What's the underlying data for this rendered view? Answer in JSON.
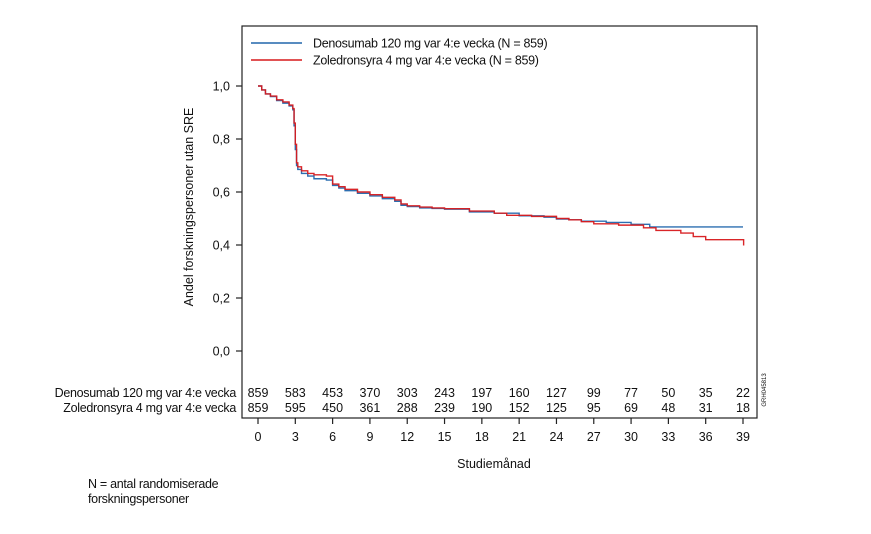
{
  "chart_data": {
    "type": "line",
    "subtype": "kaplan-meier-step",
    "title": "",
    "xlabel": "Studiemånad",
    "ylabel": "Andel forskningspersoner utan SRE",
    "xlim": [
      0,
      39
    ],
    "ylim": [
      0,
      1.0
    ],
    "x_ticks": [
      0,
      3,
      6,
      9,
      12,
      15,
      18,
      21,
      24,
      27,
      30,
      33,
      36,
      39
    ],
    "y_ticks": [
      0.0,
      0.2,
      0.4,
      0.6,
      0.8,
      1.0
    ],
    "y_tick_labels": [
      "0,0",
      "0,2",
      "0,4",
      "0,6",
      "0,8",
      "1,0"
    ],
    "grid": false,
    "legend_position": "top",
    "series": [
      {
        "name": "Denosumab 120 mg var 4:e vecka (N = 859)",
        "color": "#2166ac",
        "x": [
          0,
          0.3,
          0.6,
          1.0,
          1.5,
          2.0,
          2.5,
          2.8,
          2.9,
          3.0,
          3.1,
          3.2,
          3.5,
          4.0,
          4.5,
          5.5,
          6.0,
          6.5,
          7.0,
          8.0,
          9.0,
          10.0,
          11.0,
          11.5,
          12.0,
          13.0,
          14.0,
          15.0,
          17.0,
          19.0,
          21.0,
          23.0,
          24.0,
          25.0,
          26.0,
          28.0,
          30.0,
          31.5,
          39.0
        ],
        "y": [
          1.0,
          0.985,
          0.97,
          0.96,
          0.945,
          0.935,
          0.925,
          0.91,
          0.85,
          0.76,
          0.7,
          0.685,
          0.67,
          0.66,
          0.65,
          0.645,
          0.625,
          0.615,
          0.605,
          0.595,
          0.585,
          0.575,
          0.565,
          0.55,
          0.545,
          0.54,
          0.538,
          0.535,
          0.525,
          0.52,
          0.51,
          0.505,
          0.498,
          0.495,
          0.49,
          0.485,
          0.478,
          0.468,
          0.468
        ]
      },
      {
        "name": "Zoledronsyra 4 mg var 4:e vecka (N = 859)",
        "color": "#d7191c",
        "x": [
          0,
          0.3,
          0.6,
          1.0,
          1.5,
          2.0,
          2.5,
          2.8,
          2.9,
          3.0,
          3.1,
          3.2,
          3.5,
          4.0,
          4.5,
          5.5,
          6.0,
          6.5,
          7.0,
          8.0,
          9.0,
          10.0,
          11.0,
          11.5,
          12.0,
          13.0,
          14.0,
          15.0,
          17.0,
          19.0,
          20.0,
          22.0,
          24.0,
          25.0,
          26.0,
          27.0,
          29.0,
          31.0,
          32.0,
          34.0,
          35.0,
          36.0,
          39.0,
          39.05
        ],
        "y": [
          1.0,
          0.985,
          0.97,
          0.962,
          0.948,
          0.94,
          0.928,
          0.915,
          0.86,
          0.78,
          0.71,
          0.695,
          0.68,
          0.67,
          0.665,
          0.66,
          0.63,
          0.62,
          0.61,
          0.6,
          0.59,
          0.58,
          0.57,
          0.555,
          0.548,
          0.543,
          0.54,
          0.537,
          0.528,
          0.52,
          0.512,
          0.508,
          0.5,
          0.495,
          0.488,
          0.48,
          0.475,
          0.465,
          0.455,
          0.445,
          0.432,
          0.42,
          0.42,
          0.398
        ]
      }
    ],
    "at_risk": {
      "rows": [
        {
          "label": "Denosumab 120 mg var 4:e vecka",
          "values": [
            859,
            583,
            453,
            370,
            303,
            243,
            197,
            160,
            127,
            99,
            77,
            50,
            35,
            22
          ]
        },
        {
          "label": "Zoledronsyra 4 mg var 4:e vecka",
          "values": [
            859,
            595,
            450,
            361,
            288,
            239,
            190,
            152,
            125,
            95,
            69,
            48,
            31,
            18
          ]
        }
      ]
    },
    "figure_id": "GRH045813"
  },
  "footnote": {
    "line1": "N = antal randomiserade",
    "line2": "forskningspersoner"
  }
}
